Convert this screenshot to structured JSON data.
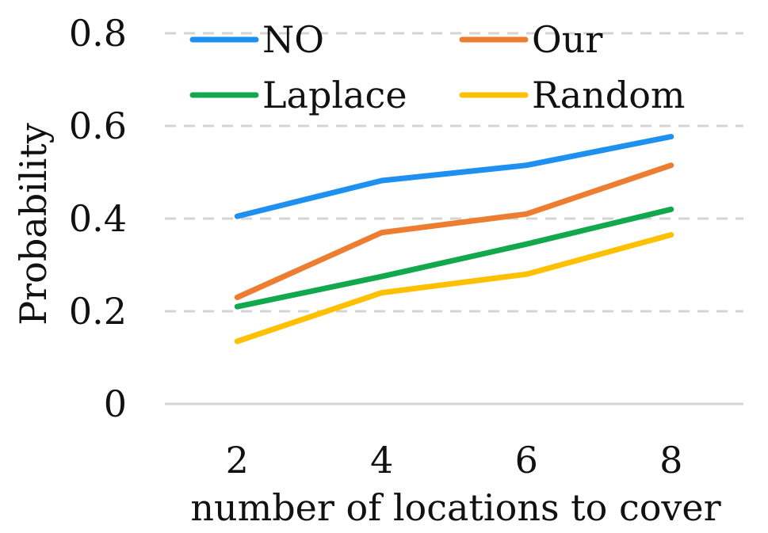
{
  "chart_data": {
    "type": "line",
    "categories": [
      "2",
      "4",
      "6",
      "8"
    ],
    "series": [
      {
        "name": "NO",
        "color": "#1E90F0",
        "values": [
          0.405,
          0.482,
          0.515,
          0.577
        ]
      },
      {
        "name": "Our",
        "color": "#ED7D31",
        "values": [
          0.23,
          0.37,
          0.41,
          0.515
        ]
      },
      {
        "name": "Laplace",
        "color": "#11A84E",
        "values": [
          0.21,
          0.275,
          0.345,
          0.42
        ]
      },
      {
        "name": "Random",
        "color": "#FFC000",
        "values": [
          0.135,
          0.24,
          0.28,
          0.365
        ]
      }
    ],
    "title": "",
    "xlabel": "number of locations to cover",
    "ylabel": "Probability",
    "ylim": [
      0,
      0.8
    ],
    "yticks": [
      0,
      0.2,
      0.4,
      0.6,
      0.8
    ],
    "ytick_labels": [
      "0",
      "0.2",
      "0.4",
      "0.6",
      "0.8"
    ],
    "grid": "horizontal dashed",
    "legend_position": "top"
  }
}
